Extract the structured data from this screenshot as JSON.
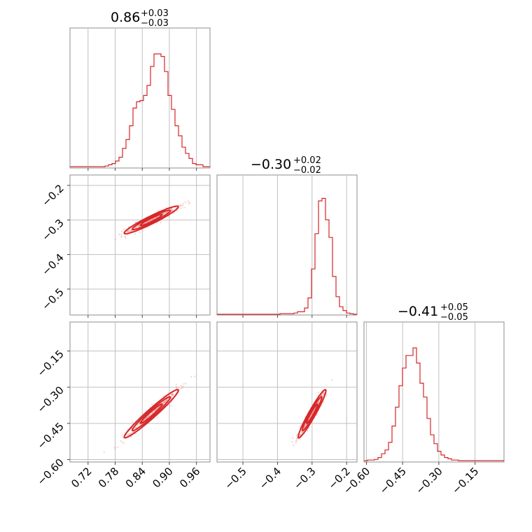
{
  "chart_data": {
    "type": "corner",
    "line_color": "#d62728",
    "grid": true,
    "parameters": [
      {
        "title": {
          "median": "0.86",
          "plus": "+0.03",
          "minus": "−0.03"
        },
        "xlim": [
          0.68,
          0.99
        ],
        "ticks": [
          0.72,
          0.78,
          0.84,
          0.9,
          0.96
        ],
        "tick_labels": [
          "0.72",
          "0.78",
          "0.84",
          "0.90",
          "0.96"
        ],
        "hist": {
          "x0": 0.68,
          "x1": 0.99,
          "counts": [
            0.005,
            0.005,
            0.005,
            0.005,
            0.005,
            0.005,
            0.005,
            0.005,
            0.005,
            0.005,
            0.01,
            0.02,
            0.03,
            0.05,
            0.08,
            0.15,
            0.22,
            0.33,
            0.47,
            0.52,
            0.53,
            0.57,
            0.65,
            0.8,
            0.9,
            0.9,
            0.88,
            0.76,
            0.57,
            0.46,
            0.33,
            0.25,
            0.16,
            0.11,
            0.07,
            0.03,
            0.02,
            0.02,
            0.005,
            0.005
          ]
        }
      },
      {
        "title": {
          "median": "−0.30",
          "plus": "+0.02",
          "minus": "−0.02"
        },
        "ylim": [
          -0.575,
          -0.17
        ],
        "yticks": [
          -0.2,
          -0.3,
          -0.4,
          -0.5
        ],
        "ytick_labels": [
          "−0.2",
          "−0.3",
          "−0.4",
          "−0.5"
        ],
        "xlim": [
          -0.575,
          -0.17
        ],
        "xticks": [
          -0.5,
          -0.4,
          -0.3,
          -0.2
        ],
        "xtick_labels": [
          "−0.5",
          "−0.4",
          "−0.3",
          "−0.2"
        ],
        "hist": {
          "x0": -0.575,
          "x1": -0.17,
          "counts": [
            0,
            0,
            0,
            0,
            0,
            0,
            0,
            0,
            0,
            0,
            0,
            0,
            0,
            0,
            0,
            0,
            0,
            0,
            0.005,
            0.005,
            0.005,
            0.005,
            0.01,
            0.02,
            0.02,
            0.05,
            0.13,
            0.36,
            0.64,
            0.9,
            0.92,
            0.75,
            0.61,
            0.3,
            0.14,
            0.06,
            0.03,
            0.01,
            0.005,
            0
          ]
        }
      },
      {
        "title": {
          "median": "−0.41",
          "plus": "+0.05",
          "minus": "−0.05"
        },
        "ylim": [
          -0.61,
          -0.03
        ],
        "yticks": [
          -0.15,
          -0.3,
          -0.45,
          -0.6
        ],
        "ytick_labels": [
          "−0.15",
          "−0.30",
          "−0.45",
          "−0.60"
        ],
        "xlim": [
          -0.61,
          -0.03
        ],
        "xticks": [
          -0.6,
          -0.45,
          -0.3,
          -0.15
        ],
        "xtick_labels": [
          "−0.60",
          "−0.45",
          "−0.30",
          "−0.15"
        ],
        "hist": {
          "x0": -0.61,
          "x1": -0.03,
          "counts": [
            0.005,
            0.01,
            0.01,
            0.015,
            0.03,
            0.06,
            0.09,
            0.15,
            0.28,
            0.43,
            0.6,
            0.74,
            0.84,
            0.84,
            0.9,
            0.78,
            0.62,
            0.51,
            0.34,
            0.21,
            0.14,
            0.08,
            0.05,
            0.03,
            0.02,
            0.01,
            0.01,
            0.005,
            0.005,
            0.005,
            0.005,
            0.005,
            0.005,
            0.005,
            0.005,
            0.005,
            0.005,
            0.005,
            0.005,
            0.005
          ]
        }
      }
    ],
    "scatter": {
      "p1_p0": {
        "slope": 2.2,
        "mean": [
          0.86,
          -0.3
        ],
        "corr": 0.95,
        "sd": [
          0.03,
          0.02
        ]
      },
      "p2_p0": {
        "slope": 3.4,
        "mean": [
          0.86,
          -0.41
        ],
        "corr": 0.97,
        "sd": [
          0.03,
          0.05
        ]
      },
      "p2_p1": {
        "slope": 2.4,
        "mean": [
          -0.3,
          -0.41
        ],
        "corr": 0.96,
        "sd": [
          0.02,
          0.05
        ]
      }
    }
  }
}
